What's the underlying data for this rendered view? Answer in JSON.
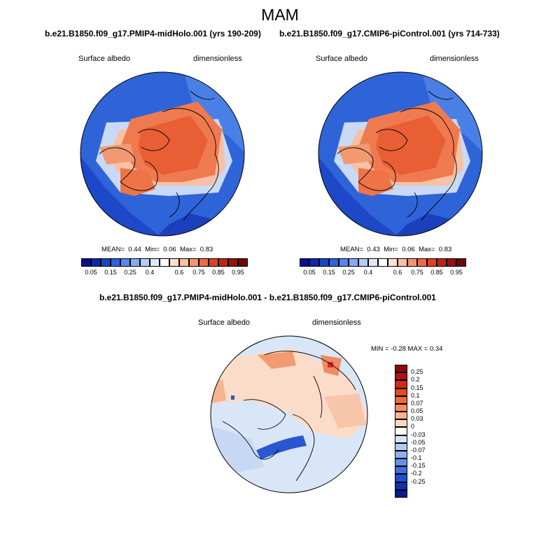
{
  "title": "MAM",
  "panels": [
    {
      "title": "b.e21.B1850.f09_g17.PMIP4-midHolo.001 (yrs 190-209)",
      "left_label": "Surface albedo",
      "right_label": "dimensionless",
      "stats": {
        "mean_label": "MEAN=",
        "mean": "0.44",
        "min_label": "Min=",
        "min": "0.06",
        "max_label": "Max=",
        "max": "0.83"
      }
    },
    {
      "title": "b.e21.B1850.f09_g17.CMIP6-piControl.001 (yrs 714-733)",
      "left_label": "Surface albedo",
      "right_label": "dimensionless",
      "stats": {
        "mean_label": "MEAN=",
        "mean": "0.43",
        "min_label": "Min=",
        "min": "0.06",
        "max_label": "Max=",
        "max": "0.83"
      }
    }
  ],
  "colorbar_abs": {
    "labels": [
      "0.05",
      "0.15",
      "0.25",
      "0.4",
      "0.6",
      "0.75",
      "0.85",
      "0.95"
    ],
    "colors": [
      "#0a0f8c",
      "#0b2aa8",
      "#1447c8",
      "#2b63e0",
      "#5386ee",
      "#84aaf3",
      "#b4cdf7",
      "#dfe9fb",
      "#ffffff",
      "#fde0cf",
      "#fbbfa2",
      "#f89470",
      "#f26a42",
      "#e2401f",
      "#bf2415",
      "#951010",
      "#6b0808"
    ]
  },
  "diff": {
    "title": "b.e21.B1850.f09_g17.PMIP4-midHolo.001 - b.e21.B1850.f09_g17.CMIP6-piControl.001",
    "left_label": "Surface albedo",
    "right_label": "dimensionless",
    "minmax_text": "MIN =  -0.28 MAX =   0.34"
  },
  "colorbar_diff": {
    "labels": [
      "0.25",
      "0.2",
      "0.15",
      "0.1",
      "0.07",
      "0.05",
      "0.03",
      "0",
      "-0.03",
      "-0.05",
      "-0.07",
      "-0.1",
      "-0.15",
      "-0.2",
      "-0.25"
    ],
    "colors": [
      "#8c0a0a",
      "#b01212",
      "#cf2a18",
      "#e24a22",
      "#ee6a3a",
      "#f58e5e",
      "#f8b38f",
      "#fbd9c4",
      "#ffffff",
      "#d8e5f8",
      "#b2cbf3",
      "#8eb1ee",
      "#6490e6",
      "#3c6fde",
      "#1f4fd0",
      "#0c2fb4",
      "#081a8a"
    ]
  }
}
